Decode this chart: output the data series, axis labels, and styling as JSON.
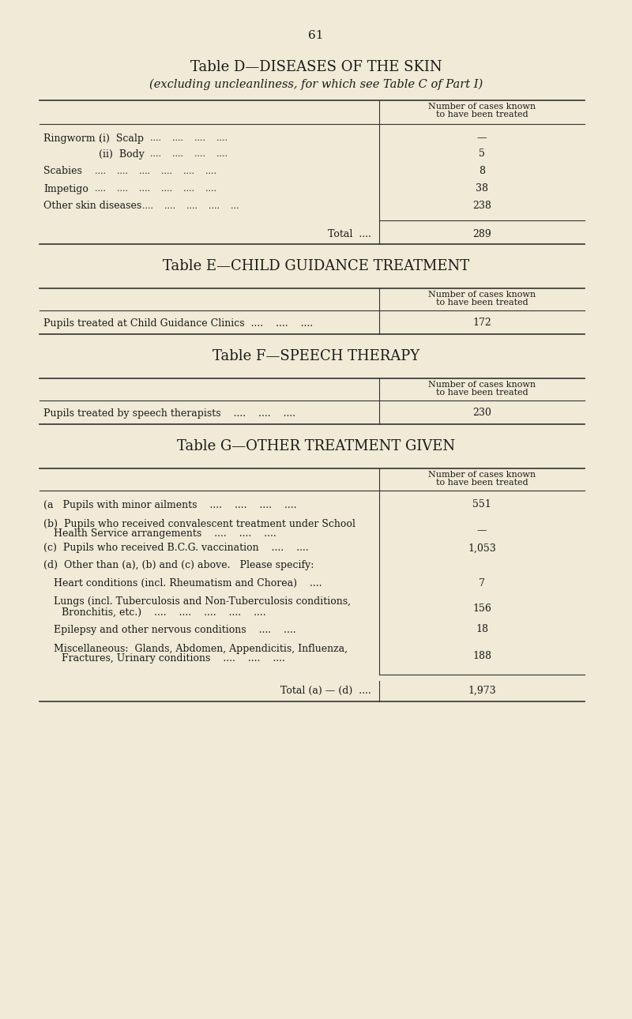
{
  "bg_color": "#f0ead6",
  "text_color": "#1a1a1a",
  "page_number": "61",
  "table_d": {
    "title": "Table D—DISEASES OF THE SKIN",
    "subtitle": "(excluding uncleanliness, for which see Table C of Part I)",
    "col_header": "Number of cases known\nto have been treated",
    "rows": [
      {
        "label": "Ringworm :    (i)  Scalp    ....    ....    ....    ....",
        "value": "—",
        "indent": 0
      },
      {
        "label": "(ii)  Body    ....    ....    ....    ....",
        "value": "5",
        "indent": 1
      },
      {
        "label": "Scabies    ....    ....    ....    ....    ....    ....",
        "value": "8",
        "indent": 0
      },
      {
        "label": "Impetigo    ....    ....    ....    ....    ....    ....",
        "value": "38",
        "indent": 0
      },
      {
        "label": "Other skin diseases    ....    ....    ....    ....    ...",
        "value": "238",
        "indent": 0
      }
    ],
    "total_label": "Total  ....",
    "total_value": "289"
  },
  "table_e": {
    "title": "Table E—CHILD GUIDANCE TREATMENT",
    "col_header": "Number of cases known\nto have been treated",
    "rows": [
      {
        "label": "Pupils treated at Child Guidance Clinics  ....    ....    ....",
        "value": "172"
      }
    ]
  },
  "table_f": {
    "title": "Table F—SPEECH THERAPY",
    "col_header": "Number of cases known\nto have been treated",
    "rows": [
      {
        "label": "Pupils treated by speech therapists    ....    ....    ....",
        "value": "230"
      }
    ]
  },
  "table_g": {
    "title": "Table G—OTHER TREATMENT GIVEN",
    "col_header": "Number of cases known\nto have been treated",
    "rows": [
      {
        "label": "(a   Pupils with minor ailments    ....    ....    ....    ....",
        "value": "551",
        "indent": 0
      },
      {
        "label": "(b)  Pupils who received convalescent treatment under School\n        Health Service arrangements    ....    ....    ....",
        "value": "—",
        "indent": 0
      },
      {
        "label": "(c)  Pupils who received B.C.G. vaccination    ....    ....",
        "value": "1,053",
        "indent": 0
      },
      {
        "label": "(d)  Other than (a), (b) and (c) above.   Please specify:",
        "value": "",
        "indent": 0
      },
      {
        "label": "    Heart conditions (incl. Rheumatism and Chorea)    ....",
        "value": "7",
        "indent": 1
      },
      {
        "label": "    Lungs (incl. Tuberculosis and Non-Tuberculosis conditions,\n        Bronchitis, etc.)    ....    ....    ....    ....    ....",
        "value": "156",
        "indent": 1
      },
      {
        "label": "    Epilepsy and other nervous conditions    ....    ....",
        "value": "18",
        "indent": 1
      },
      {
        "label": "    Miscellaneous:  Glands, Abdomen, Appendicitis, Influenza,\n        Fractures, Urinary conditions    ....    ....    ....",
        "value": "188",
        "indent": 1
      }
    ],
    "total_label": "Total (a) — (d)  ....",
    "total_value": "1,973"
  }
}
